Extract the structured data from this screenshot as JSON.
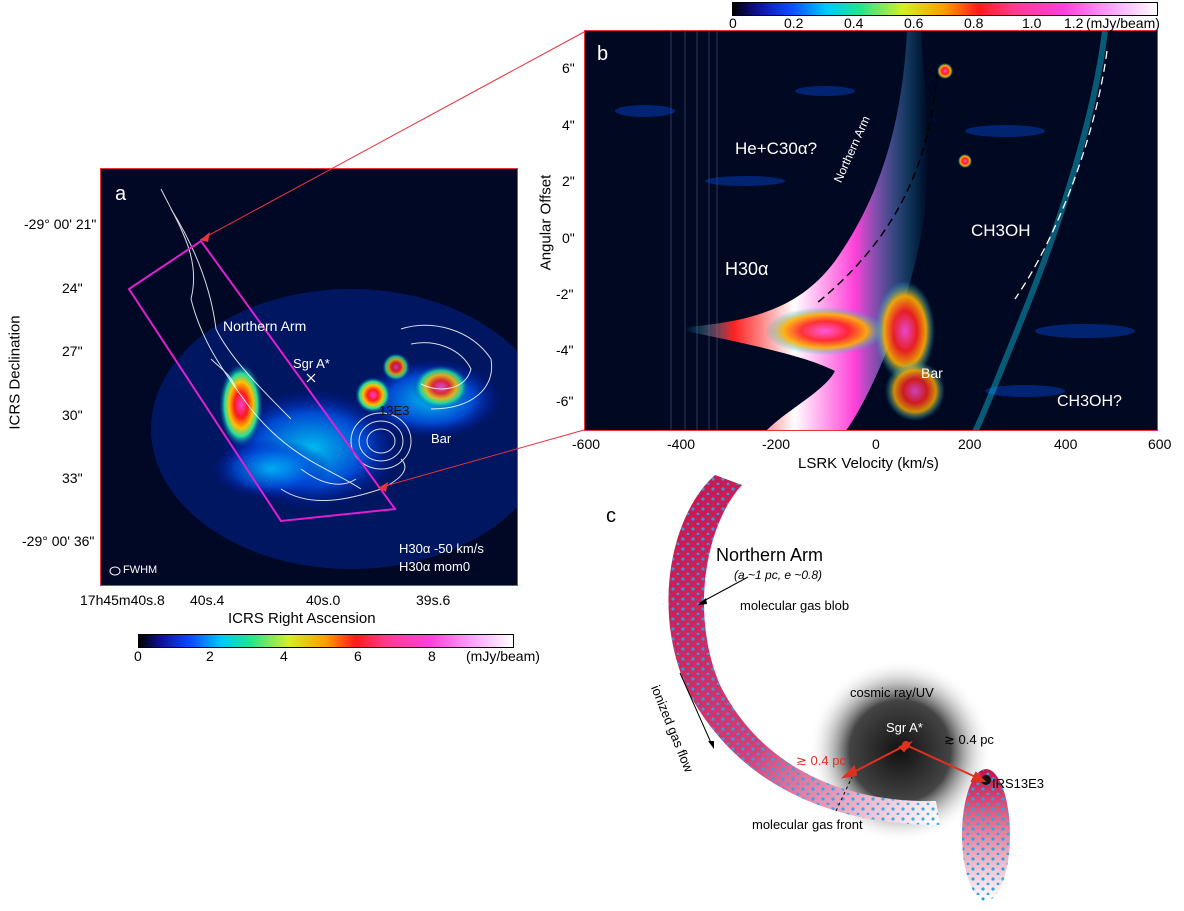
{
  "panel_a": {
    "label": "a",
    "dec_ticks": [
      "-29° 00' 21\"",
      "24\"",
      "27\"",
      "30\"",
      "33\"",
      "-29° 00' 36\""
    ],
    "ra_ticks": [
      "17h45m40s.8",
      "40s.4",
      "40s.0",
      "39s.6"
    ],
    "xlabel": "ICRS Right Ascension",
    "ylabel": "ICRS Declination",
    "labels": {
      "northern_arm": "Northern Arm",
      "sgr_a": "Sgr A*",
      "irs": "13E3",
      "bar": "Bar",
      "fwhm": "FWHM",
      "legend_line1": "H30α -50 km/s",
      "legend_line2": "H30α  mom0"
    },
    "colorbar": {
      "ticks": [
        "0",
        "2",
        "4",
        "6",
        "8"
      ],
      "unit": "(mJy/beam)"
    }
  },
  "panel_b": {
    "label": "b",
    "xlabel": "LSRK Velocity (km/s)",
    "ylabel": "Angular  Offset",
    "x_ticks": [
      "-600",
      "-400",
      "-200",
      "0",
      "200",
      "400",
      "600"
    ],
    "y_ticks": [
      "6\"",
      "4\"",
      "2\"",
      "0\"",
      "-2\"",
      "-4\"",
      "-6\""
    ],
    "labels": {
      "he_c": "He+C30α?",
      "northern_arm": "Northern Arm",
      "h30a": "H30α",
      "ch3oh": "CH3OH",
      "ch3oh_q": "CH3OH?",
      "bar": "Bar"
    },
    "colorbar": {
      "ticks": [
        "0",
        "0.2",
        "0.4",
        "0.6",
        "0.8",
        "1.0",
        "1.2"
      ],
      "unit": "(mJy/beam)"
    }
  },
  "panel_c": {
    "label": "c",
    "title": "Northern Arm",
    "subtitle": "(a ~1 pc, e ~0.8)",
    "molecular_blob": "molecular gas blob",
    "ionized_flow": "ionized gas flow",
    "cosmic": "cosmic ray/UV",
    "sgr_a": "Sgr A*",
    "dist_left": "≳ 0.4 pc",
    "dist_right": "≳ 0.4 pc",
    "irs": "IRS13E3",
    "front": "molecular gas front"
  },
  "colors": {
    "frame_red": "#e8323c",
    "box_magenta": "#e020d0",
    "arm_pink": "#d02060",
    "arrow_red": "#e03020",
    "dot_blue": "#22a8e8"
  }
}
